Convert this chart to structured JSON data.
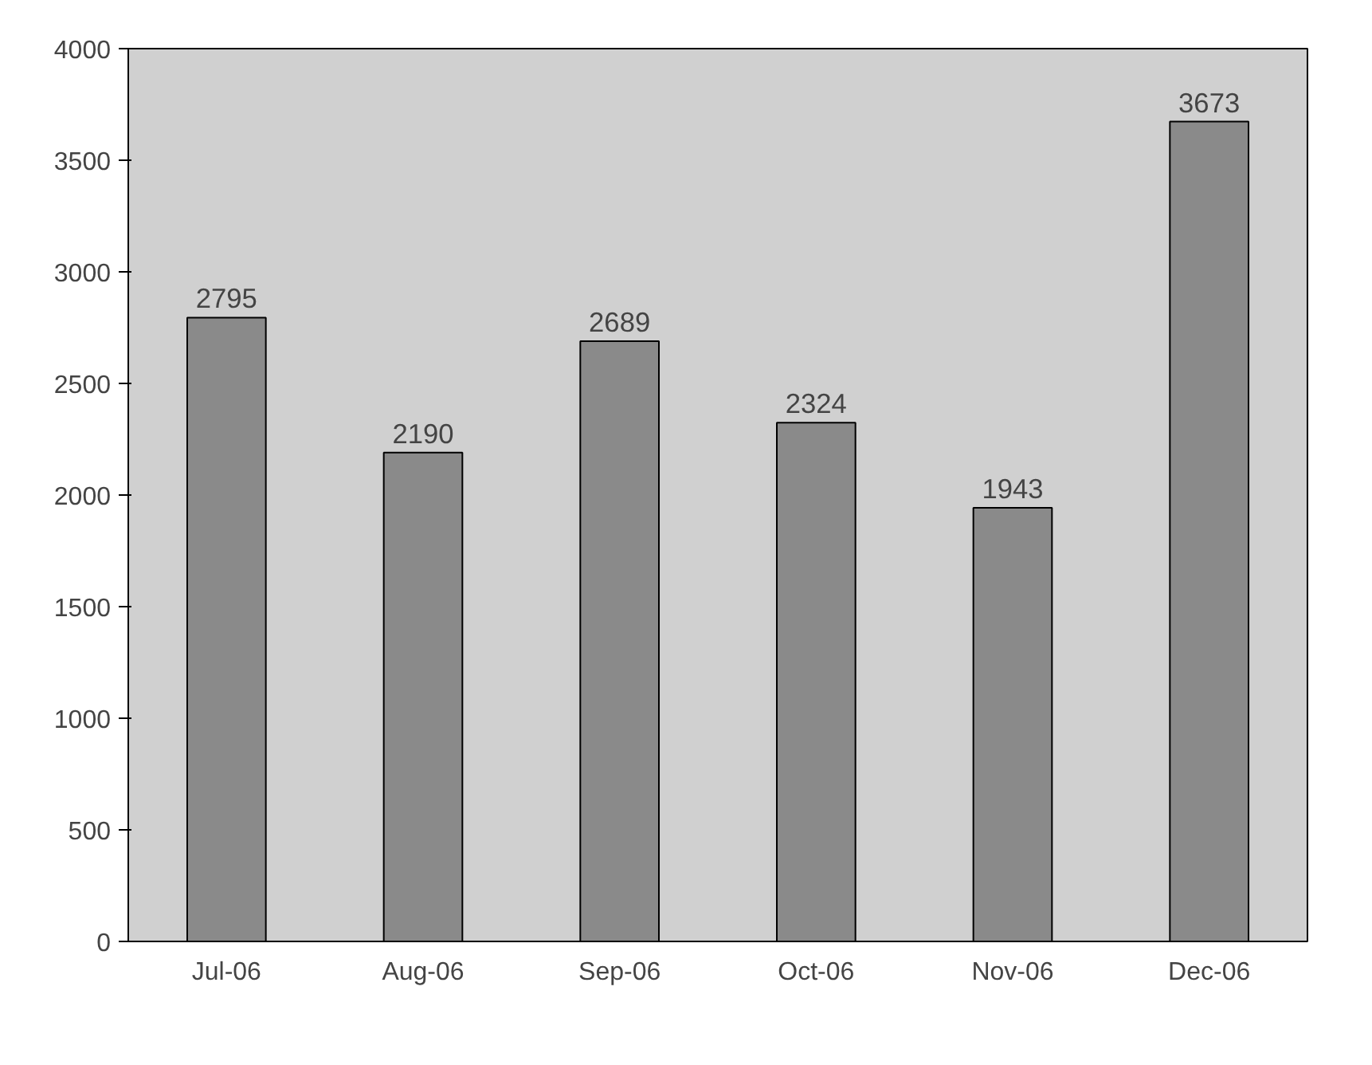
{
  "chart_data": {
    "type": "bar",
    "categories": [
      "Jul-06",
      "Aug-06",
      "Sep-06",
      "Oct-06",
      "Nov-06",
      "Dec-06"
    ],
    "values": [
      2795,
      2190,
      2689,
      2324,
      1943,
      3673
    ],
    "color": "#8a8a8a",
    "ylim": [
      0,
      4000
    ],
    "yticks": [
      0,
      500,
      1000,
      1500,
      2000,
      2500,
      3000,
      3500,
      4000
    ],
    "data_labels": true,
    "grid": false
  }
}
